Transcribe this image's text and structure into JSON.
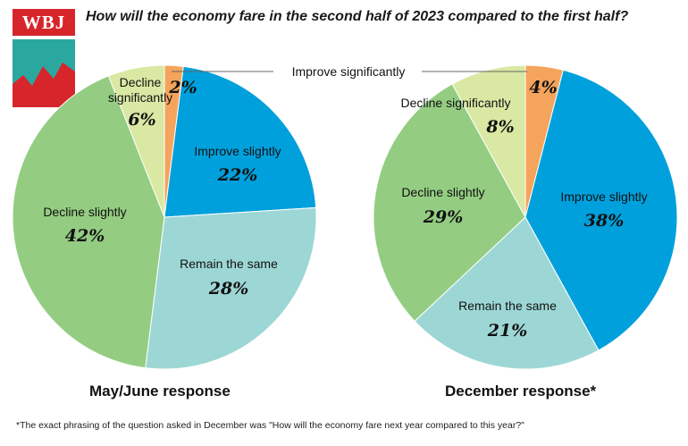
{
  "header": {
    "logo_text": "WBJ",
    "title": "How will the economy fare in the second half of 2023 compared to the first half?"
  },
  "footnote": "*The exact phrasing of the question asked in December was \"How will the economy fare next year compared to this year?\"",
  "colors": {
    "improve_significantly": "#f5a45d",
    "improve_slightly": "#00a0dc",
    "remain_same": "#9dd7d5",
    "decline_slightly": "#94cd82",
    "decline_significantly": "#d9e8a3",
    "logo_red": "#d7262b",
    "logo_teal": "#2aa8a0"
  },
  "chart_data": [
    {
      "type": "pie",
      "title": "May/June response",
      "slices": [
        {
          "label": "Improve significantly",
          "value": 2,
          "value_label": "2%",
          "color_key": "improve_significantly"
        },
        {
          "label": "Improve slightly",
          "value": 22,
          "value_label": "22%",
          "color_key": "improve_slightly"
        },
        {
          "label": "Remain the same",
          "value": 28,
          "value_label": "28%",
          "color_key": "remain_same"
        },
        {
          "label": "Decline slightly",
          "value": 42,
          "value_label": "42%",
          "color_key": "decline_slightly"
        },
        {
          "label": "Decline significantly",
          "value": 6,
          "value_label": "6%",
          "color_key": "decline_significantly"
        }
      ]
    },
    {
      "type": "pie",
      "title": "December response*",
      "slices": [
        {
          "label": "Improve significantly",
          "value": 4,
          "value_label": "4%",
          "color_key": "improve_significantly"
        },
        {
          "label": "Improve slightly",
          "value": 38,
          "value_label": "38%",
          "color_key": "improve_slightly"
        },
        {
          "label": "Remain the same",
          "value": 21,
          "value_label": "21%",
          "color_key": "remain_same"
        },
        {
          "label": "Decline slightly",
          "value": 29,
          "value_label": "29%",
          "color_key": "decline_slightly"
        },
        {
          "label": "Decline significantly",
          "value": 8,
          "value_label": "8%",
          "color_key": "decline_significantly"
        }
      ]
    }
  ],
  "shared_label": "Improve significantly"
}
